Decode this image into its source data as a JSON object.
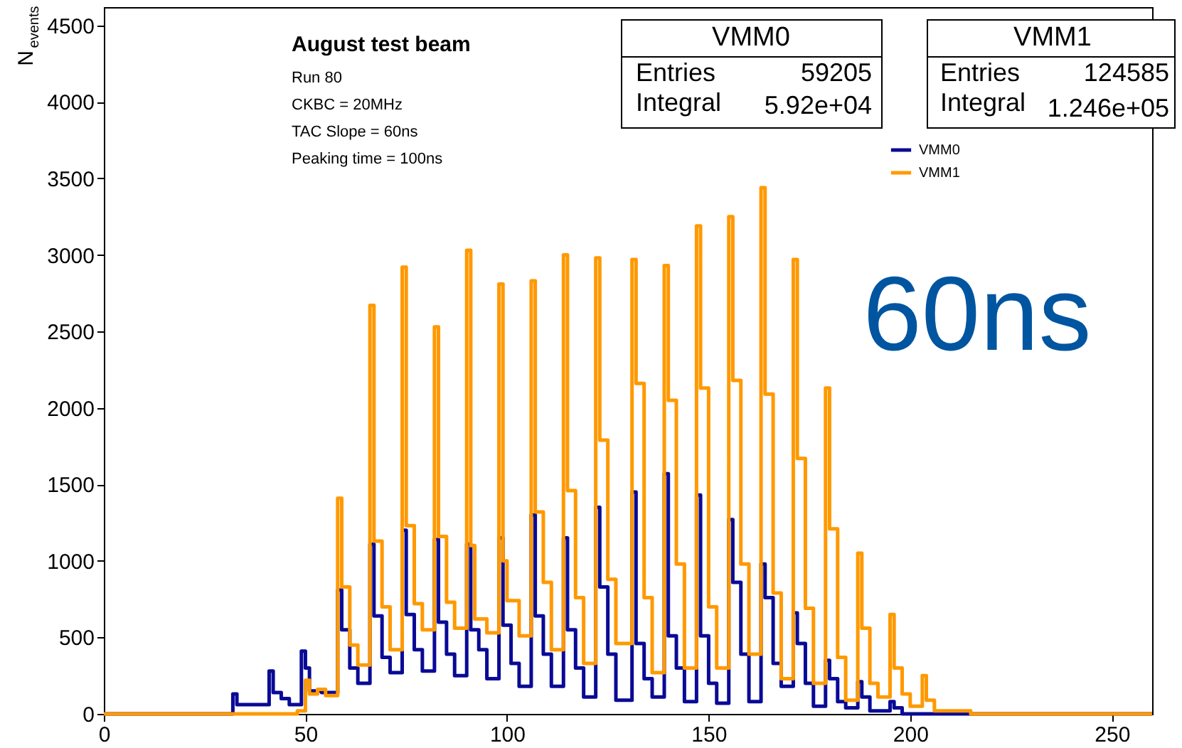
{
  "chart_data": {
    "type": "step",
    "ylabel": "N$_{events}$",
    "xlim": [
      0,
      260
    ],
    "xticks": [
      0,
      50,
      100,
      150,
      200,
      250
    ],
    "ylim": [
      0,
      4620
    ],
    "yticks": [
      0,
      500,
      1000,
      1500,
      2000,
      2500,
      3000,
      3500,
      4000,
      4500
    ],
    "grid": false,
    "legend": "top right",
    "annotations": [
      "August test beam",
      "Run 80",
      "CKBC = 20MHz",
      "TAC Slope = 60ns",
      "Peaking time = 100ns",
      "60ns",
      "VMM0",
      "Entries",
      "59205",
      "Integral",
      "5.92e+04",
      "VMM1",
      "Entries",
      "124585",
      "Integral",
      "1.246e+05"
    ],
    "series": [
      {
        "name": "VMM0",
        "color": "#0a0a96",
        "x": [
          0,
          32,
          33,
          41,
          42,
          44,
          46,
          49,
          50,
          51,
          54,
          58,
          59,
          61,
          63,
          66,
          67,
          69,
          71,
          74,
          75,
          77,
          79,
          82,
          83,
          85,
          87,
          90,
          91,
          93,
          95,
          98,
          99,
          101,
          103,
          106,
          107,
          109,
          111,
          114,
          115,
          117,
          119,
          122,
          123,
          125,
          127,
          131,
          132,
          134,
          136,
          139,
          140,
          142,
          144,
          147,
          148,
          150,
          152,
          155,
          156,
          158,
          160,
          163,
          164,
          166,
          168,
          171,
          172,
          174,
          176,
          179,
          180,
          182,
          184,
          187,
          188,
          190,
          195,
          196,
          198,
          260
        ],
        "values": [
          0,
          130,
          60,
          280,
          140,
          100,
          60,
          410,
          300,
          150,
          140,
          810,
          550,
          300,
          200,
          1110,
          640,
          370,
          270,
          1200,
          650,
          420,
          280,
          1140,
          600,
          390,
          250,
          1110,
          550,
          420,
          230,
          1150,
          580,
          330,
          180,
          1300,
          640,
          390,
          180,
          1150,
          550,
          300,
          110,
          1350,
          830,
          390,
          90,
          1450,
          460,
          230,
          110,
          1570,
          510,
          300,
          80,
          1430,
          510,
          200,
          70,
          1270,
          860,
          390,
          80,
          980,
          760,
          330,
          180,
          660,
          460,
          200,
          50,
          350,
          230,
          80,
          40,
          210,
          110,
          20,
          80,
          40,
          0,
          0
        ]
      },
      {
        "name": "VMM1",
        "color": "#ff9900",
        "x": [
          0,
          48,
          50,
          51,
          53,
          55,
          58,
          59,
          61,
          63,
          66,
          67,
          69,
          71,
          74,
          75,
          77,
          79,
          82,
          83,
          85,
          87,
          90,
          91,
          92,
          95,
          98,
          99,
          100,
          103,
          106,
          107,
          109,
          111,
          114,
          115,
          117,
          119,
          122,
          123,
          125,
          127,
          131,
          132,
          134,
          136,
          139,
          140,
          142,
          144,
          147,
          148,
          150,
          152,
          155,
          156,
          158,
          160,
          163,
          164,
          166,
          168,
          171,
          172,
          174,
          176,
          179,
          180,
          182,
          184,
          187,
          188,
          190,
          192,
          195,
          196,
          198,
          200,
          203,
          204,
          206,
          215,
          260
        ],
        "values": [
          0,
          20,
          220,
          130,
          160,
          120,
          1410,
          830,
          450,
          320,
          2670,
          1130,
          700,
          420,
          2920,
          1230,
          720,
          550,
          2530,
          1160,
          730,
          560,
          3030,
          1100,
          620,
          530,
          2810,
          1000,
          740,
          510,
          2830,
          1320,
          860,
          420,
          3000,
          1460,
          760,
          330,
          2980,
          1790,
          880,
          460,
          2970,
          2160,
          760,
          270,
          2930,
          2050,
          980,
          300,
          3190,
          2130,
          700,
          300,
          3250,
          2180,
          980,
          390,
          3440,
          2090,
          790,
          230,
          2970,
          1670,
          690,
          200,
          2130,
          1210,
          370,
          90,
          1050,
          560,
          200,
          110,
          650,
          300,
          130,
          50,
          250,
          90,
          20,
          0,
          0
        ]
      }
    ]
  }
}
